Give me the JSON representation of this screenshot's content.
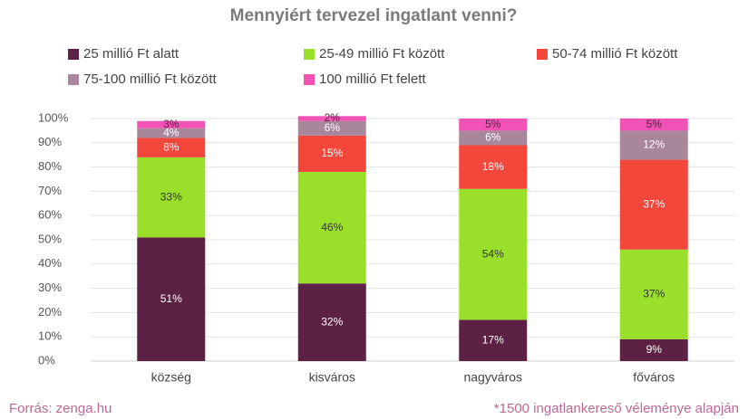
{
  "chart_data": {
    "type": "stacked_bar",
    "title": "Mennyiért tervezel ingatlant venni?",
    "categories": [
      "község",
      "kisváros",
      "nagyváros",
      "főváros"
    ],
    "series": [
      {
        "name": "25 millió Ft alatt",
        "color": "#5c2144",
        "label_color": "#ffffff",
        "values": [
          51,
          32,
          17,
          9
        ],
        "value_labels": [
          "51%",
          "32%",
          "17%",
          "9%"
        ]
      },
      {
        "name": "25-49 millió Ft között",
        "color": "#9ae02a",
        "label_color": "#333333",
        "values": [
          33,
          46,
          54,
          37
        ],
        "value_labels": [
          "33%",
          "46%",
          "54%",
          "37%"
        ]
      },
      {
        "name": "50-74 millió Ft között",
        "color": "#f4473b",
        "label_color": "#ffffff",
        "values": [
          8,
          15,
          18,
          37
        ],
        "value_labels": [
          "8%",
          "15%",
          "18%",
          "37%"
        ]
      },
      {
        "name": "75-100 millió Ft között",
        "color": "#a8879b",
        "label_color": "#ffffff",
        "values": [
          4,
          6,
          6,
          12
        ],
        "value_labels": [
          "4%",
          "6%",
          "6%",
          "12%"
        ]
      },
      {
        "name": "100 millió Ft felett",
        "color": "#f052b6",
        "label_color": "#5c2144",
        "values": [
          3,
          2,
          5,
          5
        ],
        "value_labels": [
          "3%",
          "2%",
          "5%",
          "5%"
        ]
      }
    ],
    "ylim": [
      0,
      100
    ],
    "yticks": [
      {
        "value": 0,
        "label": "0%"
      },
      {
        "value": 10,
        "label": "10%"
      },
      {
        "value": 20,
        "label": "20%"
      },
      {
        "value": 30,
        "label": "30%"
      },
      {
        "value": 40,
        "label": "40%"
      },
      {
        "value": 50,
        "label": "50%"
      },
      {
        "value": 60,
        "label": "60%"
      },
      {
        "value": 70,
        "label": "70%"
      },
      {
        "value": 80,
        "label": "80%"
      },
      {
        "value": 90,
        "label": "90%"
      },
      {
        "value": 100,
        "label": "100%"
      }
    ],
    "grid": true,
    "source": "Forrás: zenga.hu",
    "note": "*1500 ingatlankereső véleménye alapján"
  }
}
